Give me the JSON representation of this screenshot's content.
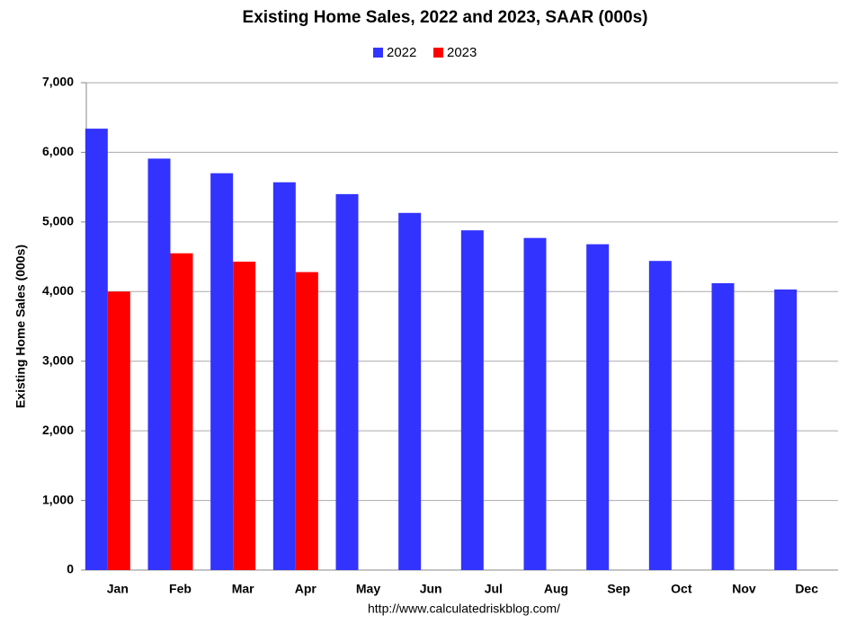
{
  "chart_data": {
    "type": "bar",
    "title": "Existing Home Sales,  2022 and 2023, SAAR (000s)",
    "y_label": "Existing Home Sales (000s)",
    "source": "http://www.calculatedriskblog.com/",
    "categories": [
      "Jan",
      "Feb",
      "Mar",
      "Apr",
      "May",
      "Jun",
      "Jul",
      "Aug",
      "Sep",
      "Oct",
      "Nov",
      "Dec"
    ],
    "series": [
      {
        "name": "2022",
        "color": "#3333ff",
        "values": [
          6340,
          5910,
          5700,
          5570,
          5400,
          5130,
          4880,
          4770,
          4680,
          4440,
          4120,
          4030
        ]
      },
      {
        "name": "2023",
        "color": "#ff0000",
        "values": [
          4000,
          4550,
          4430,
          4280,
          null,
          null,
          null,
          null,
          null,
          null,
          null,
          null
        ]
      }
    ],
    "ylim": [
      0,
      7000
    ],
    "yticks": [
      0,
      {
        "value": 1000,
        "label": "1,000"
      },
      {
        "value": 2000,
        "label": "2,000"
      },
      {
        "value": 3000,
        "label": "3,000"
      },
      {
        "value": 4000,
        "label": "4,000"
      },
      {
        "value": 5000,
        "label": "5,000"
      },
      {
        "value": 6000,
        "label": "6,000"
      },
      {
        "value": 7000,
        "label": "7,000"
      }
    ],
    "grid": true,
    "legend": "top"
  }
}
